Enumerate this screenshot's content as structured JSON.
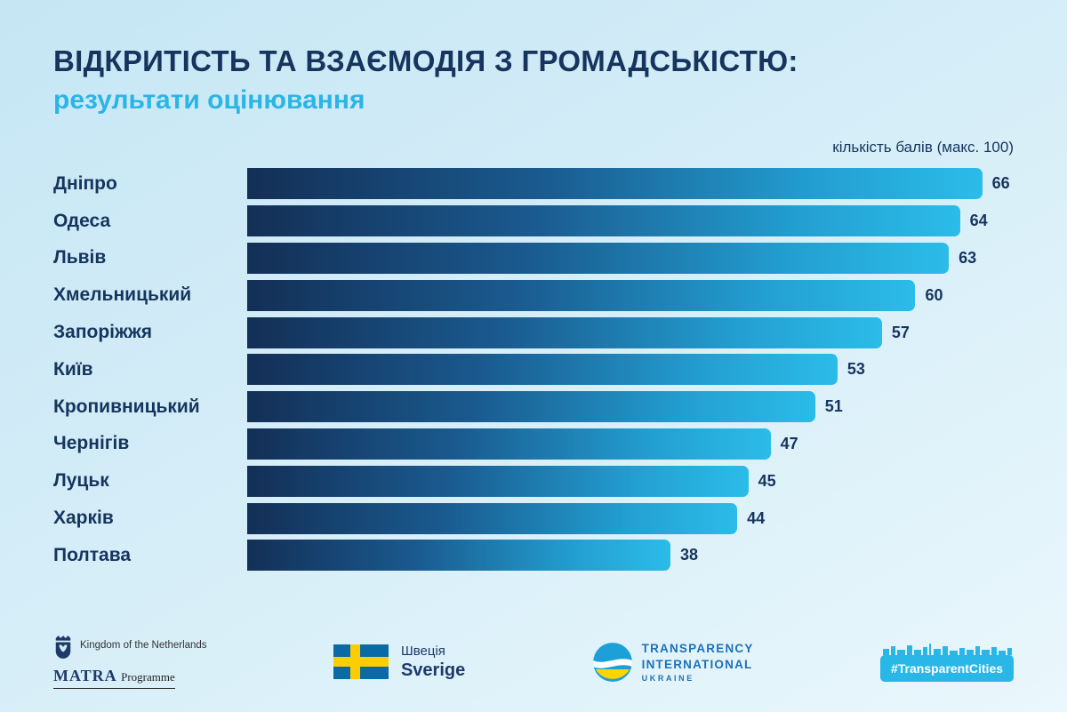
{
  "header": {
    "title": "ВІДКРИТІСТЬ ТА ВЗАЄМОДІЯ З ГРОМАДСЬКІСТЮ:",
    "subtitle": "результати оцінювання",
    "axis_note": "кількість балів (макс. 100)"
  },
  "chart_data": {
    "type": "bar",
    "orientation": "horizontal",
    "title": "Відкритість та взаємодія з громадськістю: результати оцінювання",
    "xlabel": "кількість балів (макс. 100)",
    "ylabel": "",
    "xlim": [
      0,
      100
    ],
    "grid": false,
    "legend": false,
    "categories": [
      "Дніпро",
      "Одеса",
      "Львів",
      "Хмельницький",
      "Запоріжжя",
      "Київ",
      "Кропивницький",
      "Чернігів",
      "Луцьк",
      "Харків",
      "Полтава"
    ],
    "values": [
      66,
      64,
      63,
      60,
      57,
      53,
      51,
      47,
      45,
      44,
      38
    ],
    "bar_gradient": [
      "#132f56",
      "#2bbce9"
    ],
    "value_label_color": "#16355e"
  },
  "footer": {
    "netherlands": {
      "line1": "Kingdom of the Netherlands",
      "line2_strong": "MATRA",
      "line2_rest": "Programme"
    },
    "sweden": {
      "line1": "Швеція",
      "line2": "Sverige"
    },
    "transparency": {
      "line1": "TRANSPARENCY",
      "line2": "INTERNATIONAL",
      "line3": "UKRAINE"
    },
    "transparent_cities": {
      "label": "#TransparentCities"
    }
  },
  "colors": {
    "title": "#16355e",
    "subtitle": "#2ab5e6",
    "badge": "#29b7e8",
    "background_top": "#c6e6f4",
    "background_bottom": "#eaf7fc"
  }
}
